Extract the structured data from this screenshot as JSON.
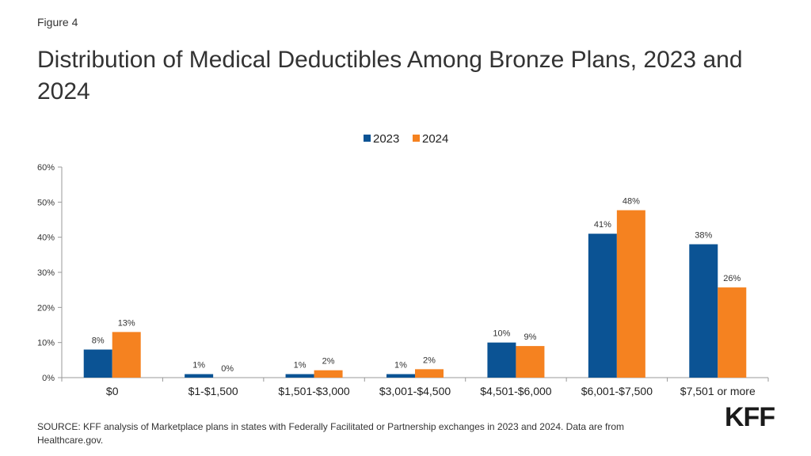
{
  "figure_label": "Figure 4",
  "title": "Distribution of Medical Deductibles Among Bronze Plans, 2023 and 2024",
  "source": "SOURCE: KFF analysis of Marketplace plans in states with Federally Facilitated or Partnership exchanges in 2023 and 2024. Data are from Healthcare.gov.",
  "logo": "KFF",
  "colors": {
    "s2023": "#0b5394",
    "s2024": "#f58220"
  },
  "chart_data": {
    "type": "bar",
    "title": "Distribution of Medical Deductibles Among Bronze Plans, 2023 and 2024",
    "xlabel": "",
    "ylabel": "",
    "ylim": [
      0,
      60
    ],
    "yticks": [
      0,
      10,
      20,
      30,
      40,
      50,
      60
    ],
    "ytick_labels": [
      "0%",
      "10%",
      "20%",
      "30%",
      "40%",
      "50%",
      "60%"
    ],
    "legend_position": "top-center",
    "grid": false,
    "categories": [
      "$0",
      "$1-$1,500",
      "$1,501-$3,000",
      "$3,001-$4,500",
      "$4,501-$6,000",
      "$6,001-$7,500",
      "$7,501 or more"
    ],
    "series": [
      {
        "name": "2023",
        "values": [
          8,
          1,
          1,
          1,
          10,
          41,
          38
        ],
        "labels": [
          "8%",
          "1%",
          "1%",
          "1%",
          "10%",
          "41%",
          "38%"
        ]
      },
      {
        "name": "2024",
        "values": [
          13,
          0,
          2,
          2,
          9,
          48,
          26
        ],
        "plot_values": [
          13,
          0,
          2.1,
          2.4,
          9,
          47.7,
          25.7
        ],
        "labels": [
          "13%",
          "0%",
          "2%",
          "2%",
          "9%",
          "48%",
          "26%"
        ]
      }
    ]
  }
}
